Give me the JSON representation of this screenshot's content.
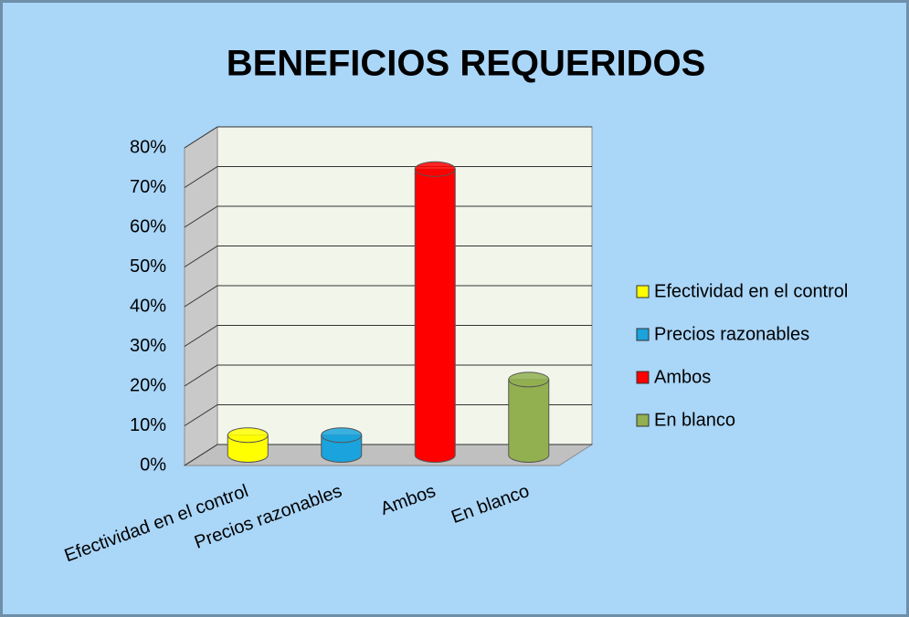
{
  "chart_data": {
    "type": "bar",
    "title": "BENEFICIOS REQUERIDOS",
    "categories": [
      "Efectividad en el control",
      "Precios razonables",
      "Ambos",
      "En blanco"
    ],
    "values": [
      5,
      5,
      72,
      19
    ],
    "colors": [
      "#ffff00",
      "#1aa3dc",
      "#ff0000",
      "#92b050"
    ],
    "ylim": [
      0,
      80
    ],
    "yticks": [
      {
        "value": 0,
        "label": "0%"
      },
      {
        "value": 10,
        "label": "10%"
      },
      {
        "value": 20,
        "label": "20%"
      },
      {
        "value": 30,
        "label": "30%"
      },
      {
        "value": 40,
        "label": "40%"
      },
      {
        "value": 50,
        "label": "50%"
      },
      {
        "value": 60,
        "label": "60%"
      },
      {
        "value": 70,
        "label": "70%"
      },
      {
        "value": 80,
        "label": "80%"
      }
    ],
    "grid": true,
    "legend": "right"
  }
}
